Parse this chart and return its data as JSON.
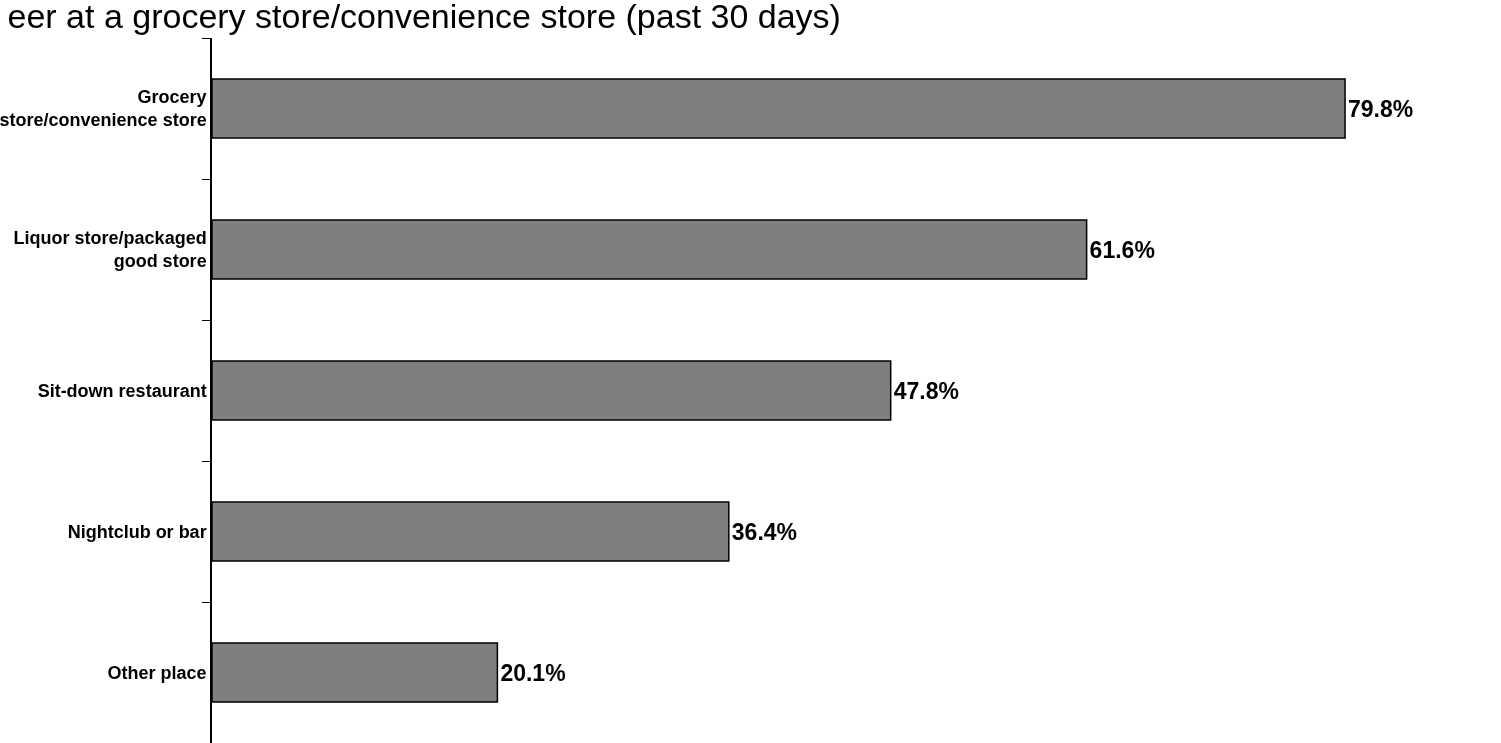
{
  "chart_data": {
    "type": "bar",
    "orientation": "horizontal",
    "title": "eer at a grocery store/convenience store (past 30 days)",
    "categories": [
      "Grocery store/convenience store",
      "Liquor store/packaged good store",
      "Sit-down restaurant",
      "Nightclub or bar",
      "Other place"
    ],
    "values": [
      79.8,
      61.6,
      47.8,
      36.4,
      20.1
    ],
    "value_labels": [
      "79.8%",
      "61.6%",
      "47.8%",
      "36.4%",
      "20.1%"
    ],
    "color": "#7f7f7f",
    "tick_labels": "y"
  }
}
